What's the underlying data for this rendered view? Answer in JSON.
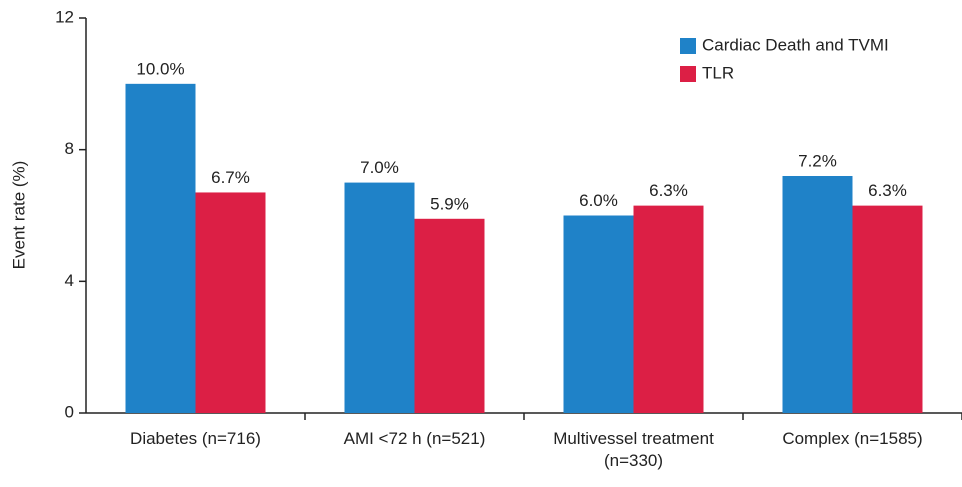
{
  "chart_data": {
    "type": "bar",
    "y_label": "Event rate (%)",
    "categories": [
      "Diabetes (n=716)",
      "AMI <72 h (n=521)",
      "Multivessel treatment (n=330)",
      "Complex (n=1585)"
    ],
    "series": [
      {
        "name": "Cardiac Death and TVMI",
        "color": "#1f82c8",
        "values": [
          10.0,
          7.0,
          6.0,
          7.2
        ],
        "value_labels": [
          "10.0%",
          "7.0%",
          "6.0%",
          "7.2%"
        ]
      },
      {
        "name": "TLR",
        "color": "#dc1f45",
        "values": [
          6.7,
          5.9,
          6.3,
          6.3
        ],
        "value_labels": [
          "6.7%",
          "5.9%",
          "6.3%",
          "6.3%"
        ]
      }
    ],
    "ylim": [
      0,
      12
    ],
    "yticks": [
      0,
      4,
      8,
      12
    ],
    "legend": "top-right"
  }
}
